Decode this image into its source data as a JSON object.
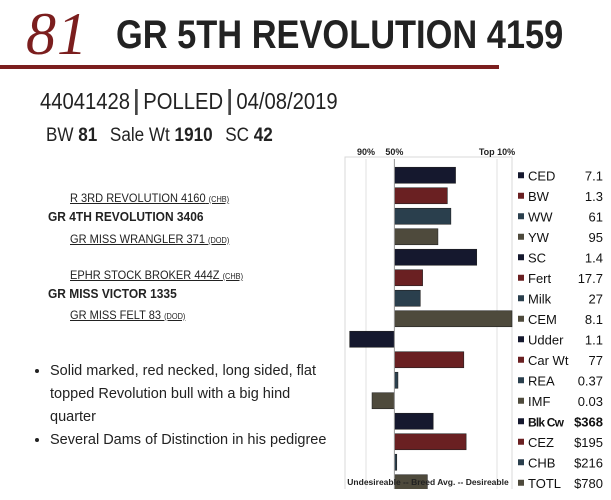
{
  "header": {
    "lot_number": "81",
    "bull_name": "GR  5TH REVOLUTION 4159"
  },
  "registration": {
    "number": "44041428",
    "polled": "POLLED",
    "birth_date": "04/08/2019"
  },
  "stats": {
    "bw_label": "BW",
    "bw_value": "81",
    "sale_wt_label": "Sale Wt",
    "sale_wt_value": "1910",
    "sc_label": "SC",
    "sc_value": "42"
  },
  "pedigree": {
    "sire_sire": "R 3RD REVOLUTION 4160",
    "sire_sire_suffix": "(CHB)",
    "sire": "GR 4TH REVOLUTION 3406",
    "sire_dam": "GR MISS WRANGLER 371",
    "sire_dam_suffix": "(DOD)",
    "dam_sire": "EPHR STOCK BROKER 444Z",
    "dam_sire_suffix": "(CHB)",
    "dam": "GR MISS VICTOR 1335",
    "dam_dam": "GR MISS FELT 83",
    "dam_dam_suffix": "(DOD)"
  },
  "bullets": [
    "Solid marked, red necked, long sided, flat topped Revolution bull with a big hind quarter",
    "Several Dams of Distinction in his pedigree"
  ],
  "chart_data": {
    "type": "bar",
    "orientation": "horizontal",
    "top_labels": [
      "90%",
      "50%",
      "Top 10%"
    ],
    "bottom_label": "Undesireable -- Breed Avg. --  Desireable",
    "scale_note": "bars show percentile rank relative to breed average (center line); positive = toward Top 10%",
    "categories": [
      "CED",
      "BW",
      "WW",
      "YW",
      "SC",
      "Fert",
      "Milk",
      "CEM",
      "Udder",
      "Car Wt",
      "REA",
      "IMF",
      "Blk Cw",
      "CEZ",
      "CHB",
      "TOTL"
    ],
    "values_text": [
      "7.1",
      "1.3",
      "61",
      "95",
      "1.4",
      "17.7",
      "27",
      "8.1",
      "1.1",
      "77",
      "0.37",
      "0.03",
      "$368",
      "$195",
      "$216",
      "$780"
    ],
    "bold_categories": [
      "Blk Cw"
    ],
    "series": [
      {
        "values": [
          0.52,
          0.45,
          0.48,
          0.37,
          0.7,
          0.24,
          0.22,
          1.0,
          -0.38,
          0.59,
          0.03,
          -0.19,
          0.33,
          0.61,
          0.02,
          0.28
        ]
      }
    ],
    "xlim": [
      -0.42,
      1.0
    ],
    "bar_colors": [
      "#15182e",
      "#6a2022",
      "#2a3f4d",
      "#4e4a3c",
      "#15182e",
      "#6a2022",
      "#2a3f4d",
      "#4e4a3c",
      "#15182e",
      "#6a2022",
      "#2a3f4d",
      "#4e4a3c",
      "#15182e",
      "#6a2022",
      "#2a3f4d",
      "#4e4a3c"
    ],
    "grid": false
  }
}
